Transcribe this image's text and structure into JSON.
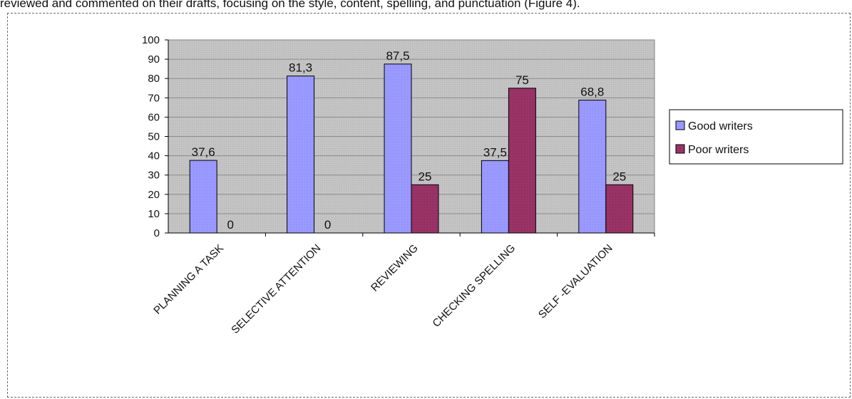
{
  "caption": "reviewed and commented on their drafts, focusing on the style, content, spelling, and punctuation (Figure 4).",
  "colors": {
    "good": "#9999ff",
    "poor": "#993366",
    "plot_bg": "#c0c0c0",
    "grid": "#a9a9a9"
  },
  "chart_data": {
    "type": "bar",
    "categories": [
      "PLANNING A TASK",
      "SELECTIVE ATTENTION",
      "REVIEWING",
      "CHECKING SPELLING",
      "SELF -EVALUATION"
    ],
    "series": [
      {
        "name": "Good writers",
        "values": [
          37.6,
          81.3,
          87.5,
          37.5,
          68.8
        ],
        "labels": [
          "37,6",
          "81,3",
          "87,5",
          "37,5",
          "68,8"
        ],
        "color": "#9999ff"
      },
      {
        "name": "Poor writers",
        "values": [
          0,
          0,
          25,
          75,
          25
        ],
        "labels": [
          "0",
          "0",
          "25",
          "75",
          "25"
        ],
        "color": "#993366"
      }
    ],
    "yticks": [
      "0",
      "10",
      "20",
      "30",
      "40",
      "50",
      "60",
      "70",
      "80",
      "90",
      "100"
    ],
    "ylim": [
      0,
      100
    ],
    "title": "",
    "xlabel": "",
    "ylabel": "",
    "grid": true,
    "legend": "right"
  }
}
